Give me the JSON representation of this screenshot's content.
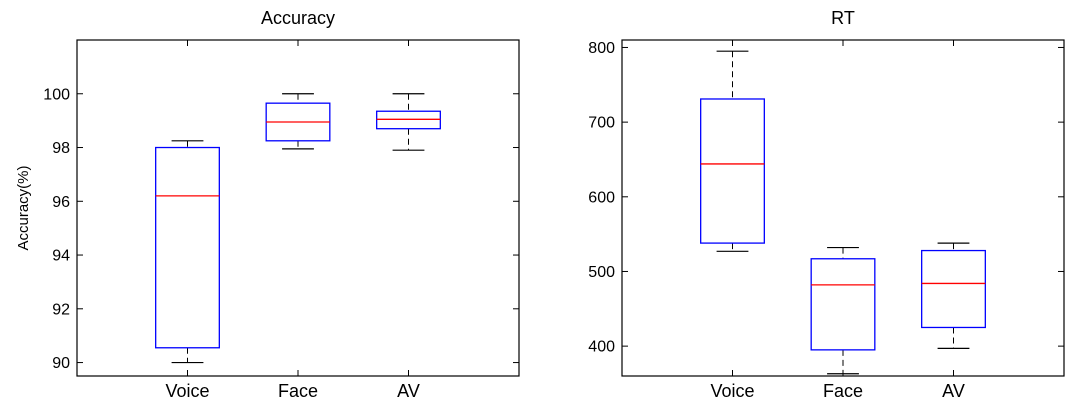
{
  "chart_data": [
    {
      "type": "box",
      "title": "Accuracy",
      "ylabel": "Accuracy(%)",
      "xlabel": "",
      "categories": [
        "Voice",
        "Face",
        "AV"
      ],
      "ylim": [
        89.5,
        102
      ],
      "yticks": [
        90,
        92,
        94,
        96,
        98,
        100
      ],
      "grid": false,
      "boxes": [
        {
          "whisker_low": 90.0,
          "q1": 90.55,
          "median": 96.2,
          "q3": 98.0,
          "whisker_high": 98.25
        },
        {
          "whisker_low": 97.95,
          "q1": 98.25,
          "median": 98.95,
          "q3": 99.65,
          "whisker_high": 100.0
        },
        {
          "whisker_low": 97.9,
          "q1": 98.7,
          "median": 99.05,
          "q3": 99.35,
          "whisker_high": 100.0
        }
      ],
      "colors": {
        "box": "#0000ff",
        "median": "#ff0000",
        "whisker": "#000000",
        "axis": "#000000"
      }
    },
    {
      "type": "box",
      "title": "RT",
      "ylabel": "",
      "xlabel": "",
      "categories": [
        "Voice",
        "Face",
        "AV"
      ],
      "ylim": [
        360,
        810
      ],
      "yticks": [
        400,
        500,
        600,
        700,
        800
      ],
      "grid": false,
      "boxes": [
        {
          "whisker_low": 527,
          "q1": 538,
          "median": 644,
          "q3": 731,
          "whisker_high": 795
        },
        {
          "whisker_low": 363,
          "q1": 395,
          "median": 482,
          "q3": 517,
          "whisker_high": 532
        },
        {
          "whisker_low": 397,
          "q1": 425,
          "median": 484,
          "q3": 528,
          "whisker_high": 538
        }
      ],
      "colors": {
        "box": "#0000ff",
        "median": "#ff0000",
        "whisker": "#000000",
        "axis": "#000000"
      }
    }
  ]
}
